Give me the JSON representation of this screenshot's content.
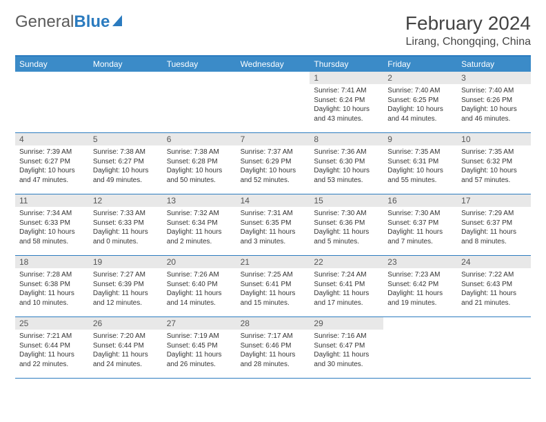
{
  "brand": {
    "part1": "General",
    "part2": "Blue"
  },
  "title": "February 2024",
  "location": "Lirang, Chongqing, China",
  "colors": {
    "header_bar": "#3b8bc8",
    "border": "#2b7bbf",
    "daynum_bg": "#e8e8e8",
    "text": "#333333",
    "background": "#ffffff"
  },
  "weekdays": [
    "Sunday",
    "Monday",
    "Tuesday",
    "Wednesday",
    "Thursday",
    "Friday",
    "Saturday"
  ],
  "weeks": [
    [
      {
        "empty": true
      },
      {
        "empty": true
      },
      {
        "empty": true
      },
      {
        "empty": true
      },
      {
        "num": "1",
        "sunrise": "Sunrise: 7:41 AM",
        "sunset": "Sunset: 6:24 PM",
        "daylight": "Daylight: 10 hours and 43 minutes."
      },
      {
        "num": "2",
        "sunrise": "Sunrise: 7:40 AM",
        "sunset": "Sunset: 6:25 PM",
        "daylight": "Daylight: 10 hours and 44 minutes."
      },
      {
        "num": "3",
        "sunrise": "Sunrise: 7:40 AM",
        "sunset": "Sunset: 6:26 PM",
        "daylight": "Daylight: 10 hours and 46 minutes."
      }
    ],
    [
      {
        "num": "4",
        "sunrise": "Sunrise: 7:39 AM",
        "sunset": "Sunset: 6:27 PM",
        "daylight": "Daylight: 10 hours and 47 minutes."
      },
      {
        "num": "5",
        "sunrise": "Sunrise: 7:38 AM",
        "sunset": "Sunset: 6:27 PM",
        "daylight": "Daylight: 10 hours and 49 minutes."
      },
      {
        "num": "6",
        "sunrise": "Sunrise: 7:38 AM",
        "sunset": "Sunset: 6:28 PM",
        "daylight": "Daylight: 10 hours and 50 minutes."
      },
      {
        "num": "7",
        "sunrise": "Sunrise: 7:37 AM",
        "sunset": "Sunset: 6:29 PM",
        "daylight": "Daylight: 10 hours and 52 minutes."
      },
      {
        "num": "8",
        "sunrise": "Sunrise: 7:36 AM",
        "sunset": "Sunset: 6:30 PM",
        "daylight": "Daylight: 10 hours and 53 minutes."
      },
      {
        "num": "9",
        "sunrise": "Sunrise: 7:35 AM",
        "sunset": "Sunset: 6:31 PM",
        "daylight": "Daylight: 10 hours and 55 minutes."
      },
      {
        "num": "10",
        "sunrise": "Sunrise: 7:35 AM",
        "sunset": "Sunset: 6:32 PM",
        "daylight": "Daylight: 10 hours and 57 minutes."
      }
    ],
    [
      {
        "num": "11",
        "sunrise": "Sunrise: 7:34 AM",
        "sunset": "Sunset: 6:33 PM",
        "daylight": "Daylight: 10 hours and 58 minutes."
      },
      {
        "num": "12",
        "sunrise": "Sunrise: 7:33 AM",
        "sunset": "Sunset: 6:33 PM",
        "daylight": "Daylight: 11 hours and 0 minutes."
      },
      {
        "num": "13",
        "sunrise": "Sunrise: 7:32 AM",
        "sunset": "Sunset: 6:34 PM",
        "daylight": "Daylight: 11 hours and 2 minutes."
      },
      {
        "num": "14",
        "sunrise": "Sunrise: 7:31 AM",
        "sunset": "Sunset: 6:35 PM",
        "daylight": "Daylight: 11 hours and 3 minutes."
      },
      {
        "num": "15",
        "sunrise": "Sunrise: 7:30 AM",
        "sunset": "Sunset: 6:36 PM",
        "daylight": "Daylight: 11 hours and 5 minutes."
      },
      {
        "num": "16",
        "sunrise": "Sunrise: 7:30 AM",
        "sunset": "Sunset: 6:37 PM",
        "daylight": "Daylight: 11 hours and 7 minutes."
      },
      {
        "num": "17",
        "sunrise": "Sunrise: 7:29 AM",
        "sunset": "Sunset: 6:37 PM",
        "daylight": "Daylight: 11 hours and 8 minutes."
      }
    ],
    [
      {
        "num": "18",
        "sunrise": "Sunrise: 7:28 AM",
        "sunset": "Sunset: 6:38 PM",
        "daylight": "Daylight: 11 hours and 10 minutes."
      },
      {
        "num": "19",
        "sunrise": "Sunrise: 7:27 AM",
        "sunset": "Sunset: 6:39 PM",
        "daylight": "Daylight: 11 hours and 12 minutes."
      },
      {
        "num": "20",
        "sunrise": "Sunrise: 7:26 AM",
        "sunset": "Sunset: 6:40 PM",
        "daylight": "Daylight: 11 hours and 14 minutes."
      },
      {
        "num": "21",
        "sunrise": "Sunrise: 7:25 AM",
        "sunset": "Sunset: 6:41 PM",
        "daylight": "Daylight: 11 hours and 15 minutes."
      },
      {
        "num": "22",
        "sunrise": "Sunrise: 7:24 AM",
        "sunset": "Sunset: 6:41 PM",
        "daylight": "Daylight: 11 hours and 17 minutes."
      },
      {
        "num": "23",
        "sunrise": "Sunrise: 7:23 AM",
        "sunset": "Sunset: 6:42 PM",
        "daylight": "Daylight: 11 hours and 19 minutes."
      },
      {
        "num": "24",
        "sunrise": "Sunrise: 7:22 AM",
        "sunset": "Sunset: 6:43 PM",
        "daylight": "Daylight: 11 hours and 21 minutes."
      }
    ],
    [
      {
        "num": "25",
        "sunrise": "Sunrise: 7:21 AM",
        "sunset": "Sunset: 6:44 PM",
        "daylight": "Daylight: 11 hours and 22 minutes."
      },
      {
        "num": "26",
        "sunrise": "Sunrise: 7:20 AM",
        "sunset": "Sunset: 6:44 PM",
        "daylight": "Daylight: 11 hours and 24 minutes."
      },
      {
        "num": "27",
        "sunrise": "Sunrise: 7:19 AM",
        "sunset": "Sunset: 6:45 PM",
        "daylight": "Daylight: 11 hours and 26 minutes."
      },
      {
        "num": "28",
        "sunrise": "Sunrise: 7:17 AM",
        "sunset": "Sunset: 6:46 PM",
        "daylight": "Daylight: 11 hours and 28 minutes."
      },
      {
        "num": "29",
        "sunrise": "Sunrise: 7:16 AM",
        "sunset": "Sunset: 6:47 PM",
        "daylight": "Daylight: 11 hours and 30 minutes."
      },
      {
        "empty": true
      },
      {
        "empty": true
      }
    ]
  ]
}
